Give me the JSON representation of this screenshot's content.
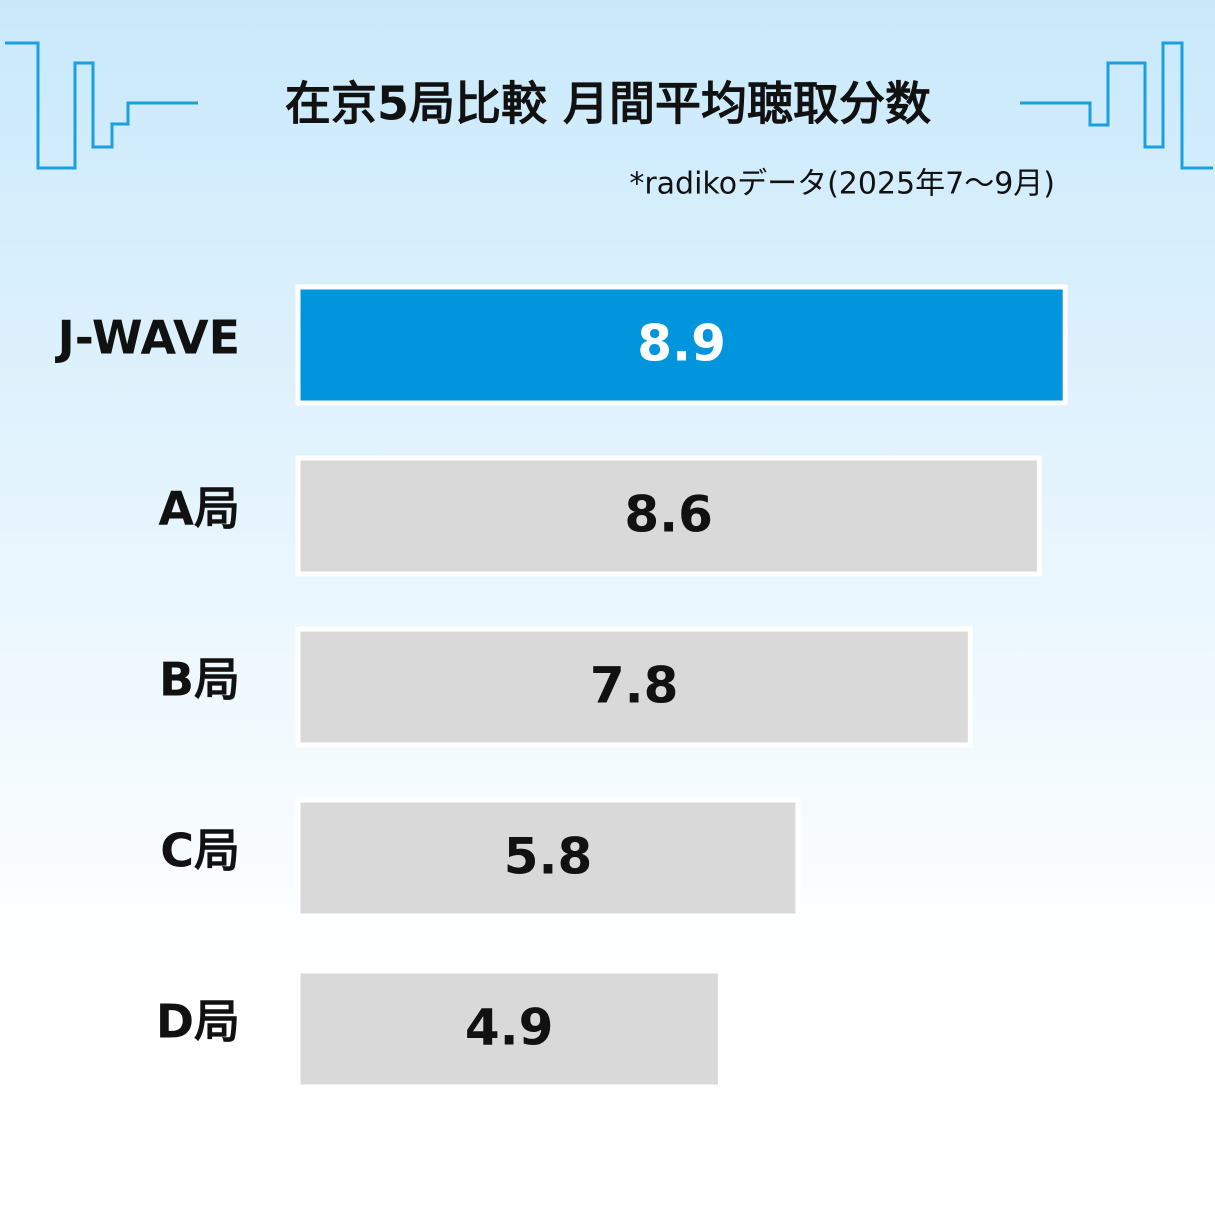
{
  "chart_data": {
    "type": "hbar",
    "title": "在京5局比較 月間平均聴取分数",
    "subtitle": "*radikoデータ(2025年7〜9月)",
    "categories": [
      "J-WAVE",
      "A局",
      "B局",
      "C局",
      "D局"
    ],
    "values": [
      8.9,
      8.6,
      7.8,
      5.8,
      4.9
    ],
    "colors": [
      "#0095dc",
      "#d9d9d9",
      "#d9d9d9",
      "#d9d9d9",
      "#d9d9d9"
    ],
    "value_label_colors": [
      "#ffffff",
      "#111111",
      "#111111",
      "#111111",
      "#111111"
    ],
    "xlim": [
      0,
      10
    ]
  }
}
